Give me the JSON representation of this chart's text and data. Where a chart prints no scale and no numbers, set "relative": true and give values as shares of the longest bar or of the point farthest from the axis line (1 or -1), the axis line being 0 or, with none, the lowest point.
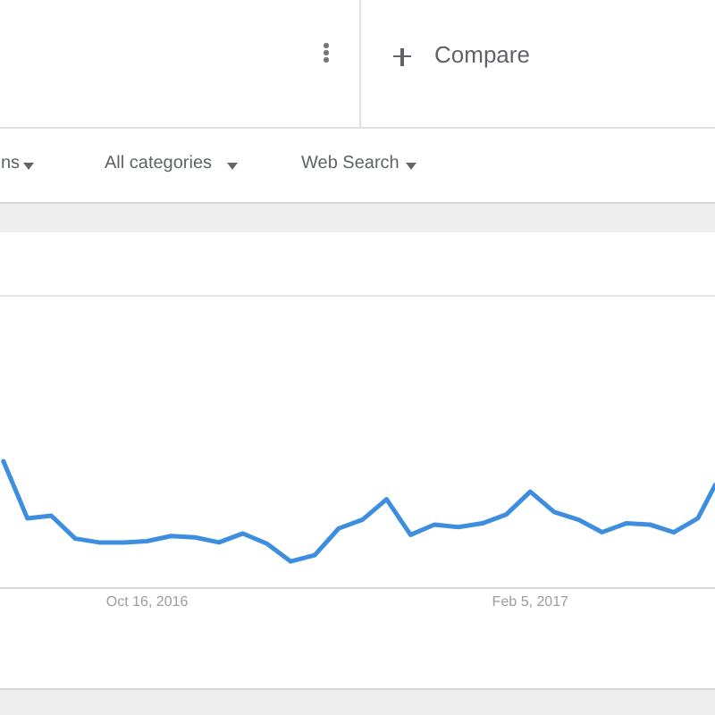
{
  "chart_data": {
    "type": "line",
    "relative": true,
    "annotations": [
      "Compare",
      "ns",
      "All categories",
      "Web Search"
    ],
    "x": [
      "2016-09-04",
      "2016-09-11",
      "2016-09-18",
      "2016-09-25",
      "2016-10-02",
      "2016-10-09",
      "2016-10-16",
      "2016-10-23",
      "2016-10-30",
      "2016-11-06",
      "2016-11-13",
      "2016-11-20",
      "2016-11-27",
      "2016-12-04",
      "2016-12-11",
      "2016-12-18",
      "2016-12-25",
      "2017-01-01",
      "2017-01-08",
      "2017-01-15",
      "2017-01-22",
      "2017-01-29",
      "2017-02-05",
      "2017-02-12",
      "2017-02-19",
      "2017-02-26",
      "2017-03-05",
      "2017-03-12",
      "2017-03-19",
      "2017-03-26",
      "2017-03-31"
    ],
    "series": [
      {
        "color": "#3d8ede",
        "values": [
          1.0,
          0.55,
          0.57,
          0.39,
          0.36,
          0.36,
          0.37,
          0.41,
          0.4,
          0.36,
          0.43,
          0.35,
          0.21,
          0.26,
          0.47,
          0.54,
          0.7,
          0.42,
          0.5,
          0.48,
          0.51,
          0.58,
          0.76,
          0.6,
          0.54,
          0.44,
          0.51,
          0.5,
          0.44,
          0.55,
          0.81
        ]
      }
    ],
    "xlim": [
      "2016-09-03",
      "2017-03-31"
    ],
    "xticks": [
      {
        "value": "2016-10-16",
        "label": "Oct 16, 2016"
      },
      {
        "value": "2017-02-05",
        "label": "Feb 5, 2017"
      }
    ]
  }
}
